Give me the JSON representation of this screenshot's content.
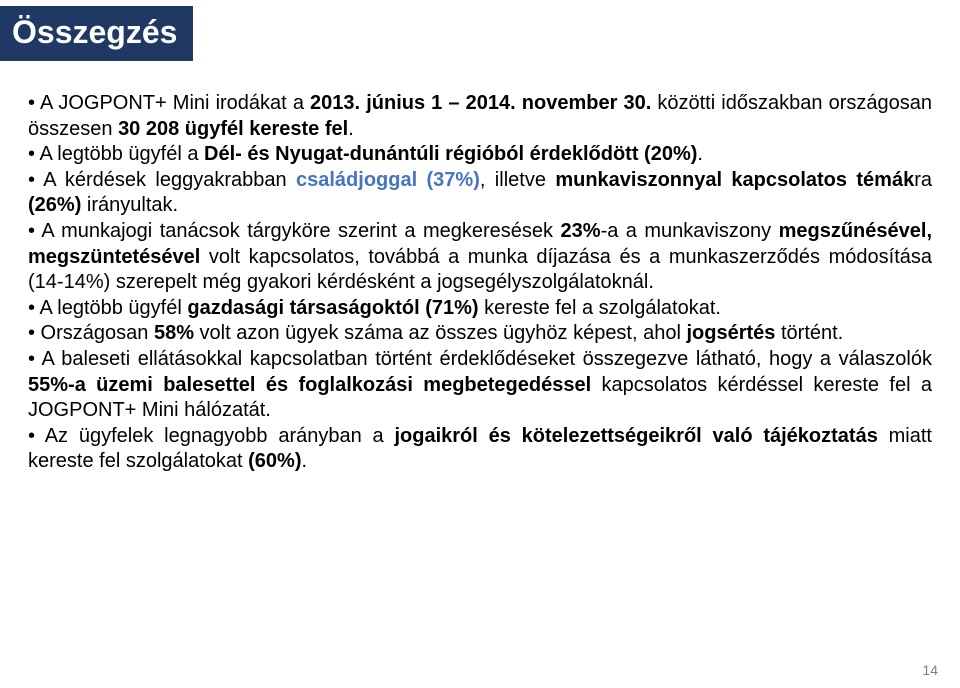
{
  "title": "Összegzés",
  "colors": {
    "title_bg": "#203864",
    "title_text": "#ffffff",
    "body_text": "#000000",
    "accent": "#4673c3",
    "page_bg": "#ffffff",
    "page_number": "#808080"
  },
  "typography": {
    "title_fontsize": 32,
    "body_fontsize": 20,
    "font_family": "Arial"
  },
  "bullets": {
    "b1_a": "• A JOGPONT+ Mini irodákat a ",
    "b1_b": "2013. június 1 – 2014. november 30.",
    "b1_c": " közötti időszakban országosan összesen ",
    "b1_d": "30 208 ügyfél kereste fel",
    "b1_e": ".",
    "b2_a": "• A legtöbb ügyfél a ",
    "b2_b": "Dél- és Nyugat-dunántúli régióból érdeklődött (20%)",
    "b2_c": ".",
    "b3_a": "• A kérdések leggyakrabban ",
    "b3_b": "családjoggal (37%)",
    "b3_c": ", illetve ",
    "b3_d": "munkaviszonnyal kapcsolatos témák",
    "b3_e": "ra ",
    "b3_f": "(26%)",
    "b3_g": " irányultak.",
    "b4_a": "• A munkajogi tanácsok tárgyköre szerint a megkeresések ",
    "b4_b": "23%",
    "b4_c": "-a a munkaviszony ",
    "b4_d": "megszűnésével, megszüntetésével",
    "b4_e": " volt kapcsolatos, továbbá a munka díjazása és a munkaszerződés módosítása (14-14%) szerepelt még gyakori kérdésként a jogsegélyszolgálatoknál.",
    "b5_a": "• A legtöbb ügyfél ",
    "b5_b": "gazdasági társaságoktól (71%)",
    "b5_c": " kereste fel a szolgálatokat.",
    "b6_a": "• Országosan ",
    "b6_b": "58%",
    "b6_c": " volt azon ügyek száma az összes ügyhöz képest, ahol ",
    "b6_d": "jogsértés",
    "b6_e": " történt.",
    "b7_a": "• A baleseti ellátásokkal kapcsolatban történt érdeklődéseket összegezve látható, hogy a válaszolók ",
    "b7_b": "55%-a üzemi balesettel és foglalkozási megbetegedéssel",
    "b7_c": " kapcsolatos kérdéssel kereste fel a JOGPONT+ Mini hálózatát.",
    "b8_a": "• Az ügyfelek legnagyobb arányban a ",
    "b8_b": "jogaikról és kötelezettségeikről való tájékoztatás",
    "b8_c": " miatt kereste fel szolgálatokat ",
    "b8_d": "(60%)",
    "b8_e": "."
  },
  "page_number": "14"
}
